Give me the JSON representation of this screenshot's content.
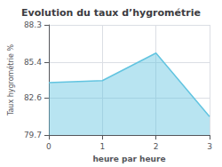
{
  "chart_data": {
    "type": "area",
    "title": "Evolution du taux d’hygrométrie",
    "xlabel": "heure par heure",
    "ylabel": "Taux hygrométrie %",
    "x": [
      0,
      1,
      2,
      3
    ],
    "values": [
      83.8,
      83.95,
      86.1,
      81.15
    ],
    "xlim": [
      0,
      3
    ],
    "ylim": [
      79.7,
      88.3
    ],
    "xticks": [
      0,
      1,
      2,
      3
    ],
    "yticks": [
      79.7,
      82.6,
      85.4,
      88.3
    ],
    "color": "#62c4e0",
    "grid": true
  }
}
